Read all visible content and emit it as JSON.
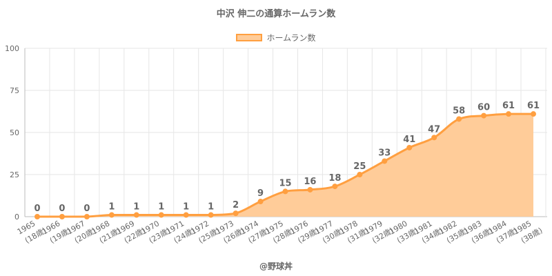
{
  "chart_data": {
    "type": "area",
    "title": "中沢 伸二の通算ホームラン数",
    "categories": [
      "1965",
      "1966",
      "1967",
      "1968",
      "1969",
      "1970",
      "1971",
      "1972",
      "1973",
      "1974",
      "1975",
      "1976",
      "1977",
      "1978",
      "1979",
      "1980",
      "1981",
      "1982",
      "1983",
      "1984",
      "1985"
    ],
    "ages": [
      "(18歳)",
      "(19歳)",
      "(20歳)",
      "(21歳)",
      "(22歳)",
      "(23歳)",
      "(24歳)",
      "(25歳)",
      "(26歳)",
      "(27歳)",
      "(28歳)",
      "(29歳)",
      "(30歳)",
      "(31歳)",
      "(32歳)",
      "(33歳)",
      "(34歳)",
      "(35歳)",
      "(36歳)",
      "(37歳)",
      "(38歳)"
    ],
    "series": [
      {
        "name": "ホームラン数",
        "values": [
          0,
          0,
          0,
          1,
          1,
          1,
          1,
          1,
          2,
          9,
          15,
          16,
          18,
          25,
          33,
          41,
          47,
          58,
          60,
          61,
          61
        ]
      }
    ],
    "ylim": [
      0,
      100
    ],
    "yticks": [
      0,
      25,
      50,
      75,
      100
    ],
    "grid": true,
    "legend_position": "top",
    "colors": {
      "line": "#ff9f40",
      "fill": "#ffcc99",
      "grid": "#e6e6e6",
      "text": "#666666"
    }
  },
  "footer": "@野球丼"
}
